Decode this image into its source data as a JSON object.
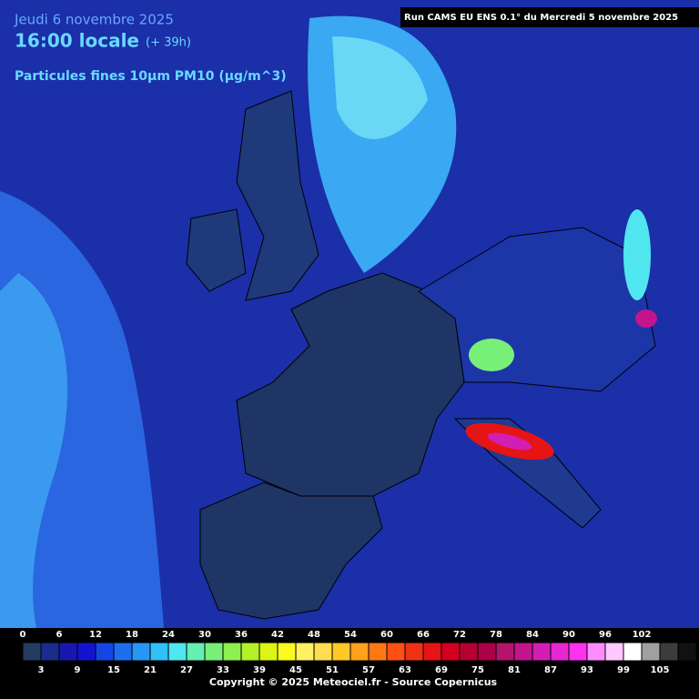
{
  "header": {
    "date": "Jeudi 6 novembre 2025",
    "time": "16:00 locale",
    "lead": "(+ 39h)",
    "parameter": "Particules fines 10µm PM10 (µg/m^3)",
    "run": "Run CAMS EU ENS 0.1° du Mercredi 5 novembre 2025"
  },
  "legend": {
    "top_labels": [
      0,
      6,
      12,
      18,
      24,
      30,
      36,
      42,
      48,
      54,
      60,
      66,
      72,
      78,
      84,
      90,
      96,
      102
    ],
    "bottom_labels": [
      3,
      9,
      15,
      21,
      27,
      33,
      39,
      45,
      51,
      57,
      63,
      69,
      75,
      81,
      87,
      93,
      99,
      105
    ],
    "colors": [
      "#243c64",
      "#1a2d8c",
      "#1818b0",
      "#1414d0",
      "#1446e6",
      "#1e6ef0",
      "#2896f5",
      "#32c0f8",
      "#50e6f0",
      "#64f0b4",
      "#78f078",
      "#8cf050",
      "#b4f028",
      "#dcf514",
      "#fafa1e",
      "#fff064",
      "#ffdc50",
      "#ffc828",
      "#ffa01e",
      "#ff7814",
      "#ff5014",
      "#f03214",
      "#e61414",
      "#d2001e",
      "#b40032",
      "#aa0046",
      "#b4146e",
      "#c3148c",
      "#d21eb4",
      "#e628d2",
      "#ff32f0",
      "#ff8cff",
      "#ffc8ff",
      "#ffffff",
      "#a0a0a0",
      "#3c3c3c",
      "#111111"
    ]
  },
  "footer": {
    "copyright": "Copyright © 2025 Meteociel.fr - Source Copernicus"
  }
}
